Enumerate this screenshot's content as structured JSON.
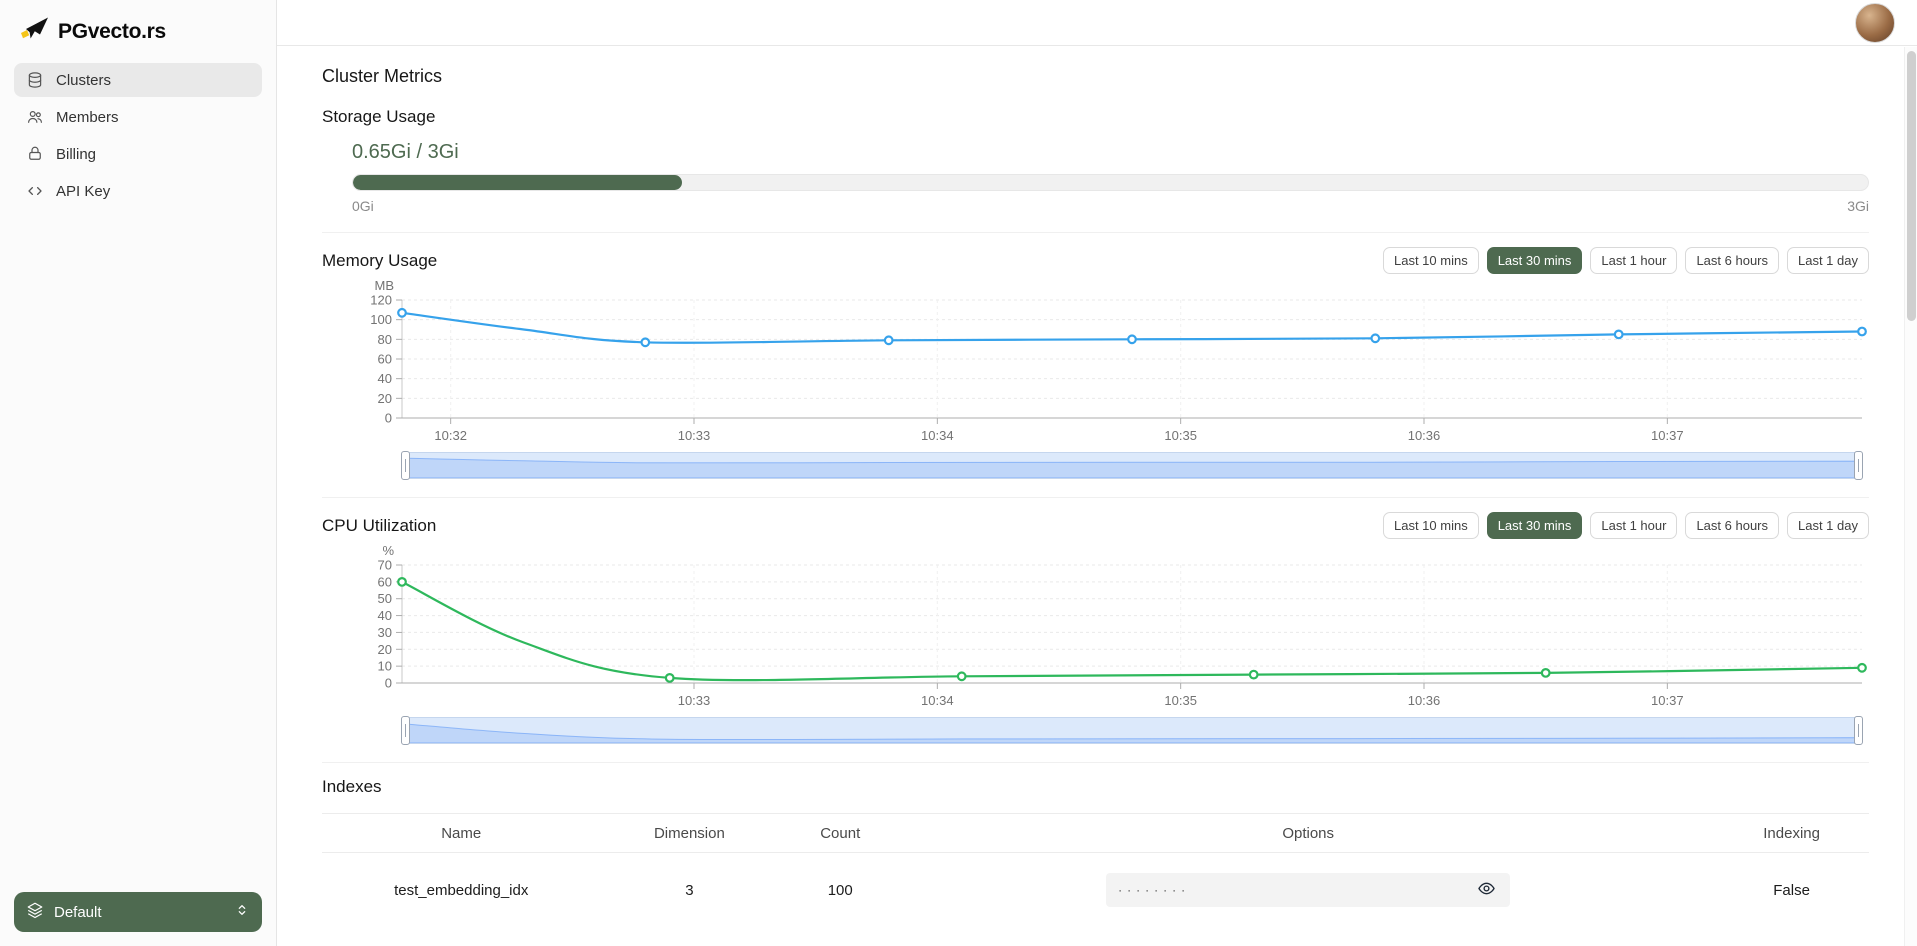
{
  "brand": {
    "name": "PGvecto.rs"
  },
  "sidebar": {
    "items": [
      {
        "label": "Clusters",
        "icon": "database-icon",
        "active": true
      },
      {
        "label": "Members",
        "icon": "members-icon",
        "active": false
      },
      {
        "label": "Billing",
        "icon": "billing-icon",
        "active": false
      },
      {
        "label": "API Key",
        "icon": "api-key-icon",
        "active": false
      }
    ],
    "cluster_switcher": {
      "label": "Default",
      "icon": "layers-icon"
    }
  },
  "page": {
    "title": "Cluster Metrics"
  },
  "storage": {
    "title": "Storage Usage",
    "usage_label": "0.65Gi / 3Gi",
    "used_gi": 0.65,
    "total_gi": 3,
    "percent_used": 21.7,
    "min_label": "0Gi",
    "max_label": "3Gi"
  },
  "time_ranges": {
    "options": [
      "Last 10 mins",
      "Last 30 mins",
      "Last 1 hour",
      "Last 6 hours",
      "Last 1 day"
    ],
    "selected": "Last 30 mins"
  },
  "colors": {
    "accent_green": "#4e6a50",
    "memory_line": "#36a2eb",
    "cpu_line": "#2eb85c",
    "brush_fill": "rgba(59,130,246,0.18)",
    "brush_stroke": "rgba(59,130,246,0.45)"
  },
  "chart_data": [
    {
      "id": "memory",
      "type": "line",
      "title": "Memory Usage",
      "unit": "MB",
      "color": "#36a2eb",
      "ylim": [
        0,
        120
      ],
      "yticks": [
        0,
        20,
        40,
        60,
        80,
        100,
        120
      ],
      "xlim": [
        1.8,
        7.8
      ],
      "xticks": [
        {
          "x": 2,
          "label": "10:32"
        },
        {
          "x": 3,
          "label": "10:33"
        },
        {
          "x": 4,
          "label": "10:34"
        },
        {
          "x": 5,
          "label": "10:35"
        },
        {
          "x": 6,
          "label": "10:36"
        },
        {
          "x": 7,
          "label": "10:37"
        }
      ],
      "points": [
        {
          "x": 1.8,
          "y": 107,
          "dot": true
        },
        {
          "x": 2.3,
          "y": 90,
          "dot": false
        },
        {
          "x": 2.8,
          "y": 77,
          "dot": true
        },
        {
          "x": 3.8,
          "y": 79,
          "dot": true
        },
        {
          "x": 4.8,
          "y": 80,
          "dot": true
        },
        {
          "x": 5.8,
          "y": 81,
          "dot": true
        },
        {
          "x": 6.8,
          "y": 85,
          "dot": true
        },
        {
          "x": 7.8,
          "y": 88,
          "dot": true
        }
      ]
    },
    {
      "id": "cpu",
      "type": "line",
      "title": "CPU Utilization",
      "unit": "%",
      "color": "#2eb85c",
      "ylim": [
        0,
        70
      ],
      "yticks": [
        0,
        10,
        20,
        30,
        40,
        50,
        60,
        70
      ],
      "xlim": [
        1.8,
        7.8
      ],
      "xticks": [
        {
          "x": 3,
          "label": "10:33"
        },
        {
          "x": 4,
          "label": "10:34"
        },
        {
          "x": 5,
          "label": "10:35"
        },
        {
          "x": 6,
          "label": "10:36"
        },
        {
          "x": 7,
          "label": "10:37"
        }
      ],
      "points": [
        {
          "x": 1.8,
          "y": 60,
          "dot": true
        },
        {
          "x": 2.3,
          "y": 24,
          "dot": false
        },
        {
          "x": 2.9,
          "y": 3,
          "dot": true
        },
        {
          "x": 4.1,
          "y": 4,
          "dot": true
        },
        {
          "x": 5.3,
          "y": 5,
          "dot": true
        },
        {
          "x": 6.5,
          "y": 6,
          "dot": true
        },
        {
          "x": 7.8,
          "y": 9,
          "dot": true
        }
      ]
    }
  ],
  "indexes": {
    "title": "Indexes",
    "columns": [
      "Name",
      "Dimension",
      "Count",
      "Options",
      "Indexing"
    ],
    "rows": [
      {
        "name": "test_embedding_idx",
        "dimension": "3",
        "count": "100",
        "options_masked": "········",
        "indexing": "False"
      }
    ]
  }
}
